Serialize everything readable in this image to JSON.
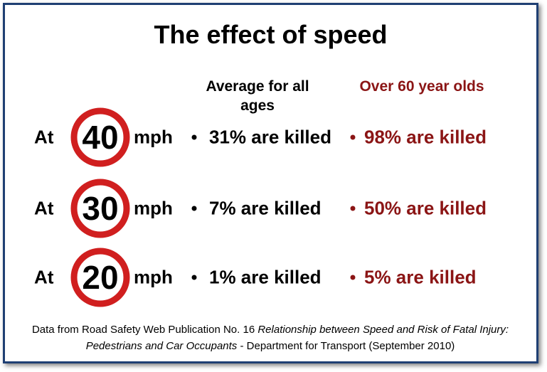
{
  "title": "The effect of speed",
  "columns": [
    "Average for all ages",
    "Over 60 year olds"
  ],
  "rows": [
    {
      "prefix": "At",
      "speed": 40,
      "unit": "mph",
      "average": "31% are killed",
      "over_60": "98% are killed"
    },
    {
      "prefix": "At",
      "speed": 30,
      "unit": "mph",
      "average": "7% are killed",
      "over_60": "50% are killed"
    },
    {
      "prefix": "At",
      "speed": 20,
      "unit": "mph",
      "average": "1% are killed",
      "over_60": "5% are killed"
    }
  ],
  "footer": [
    "Data from Road Safety Web Publication No. 16",
    "Relationship between Speed and Risk of Fatal Injury: Pedestrians and Car Occupants",
    "- Department for Transport (September 2010)"
  ]
}
